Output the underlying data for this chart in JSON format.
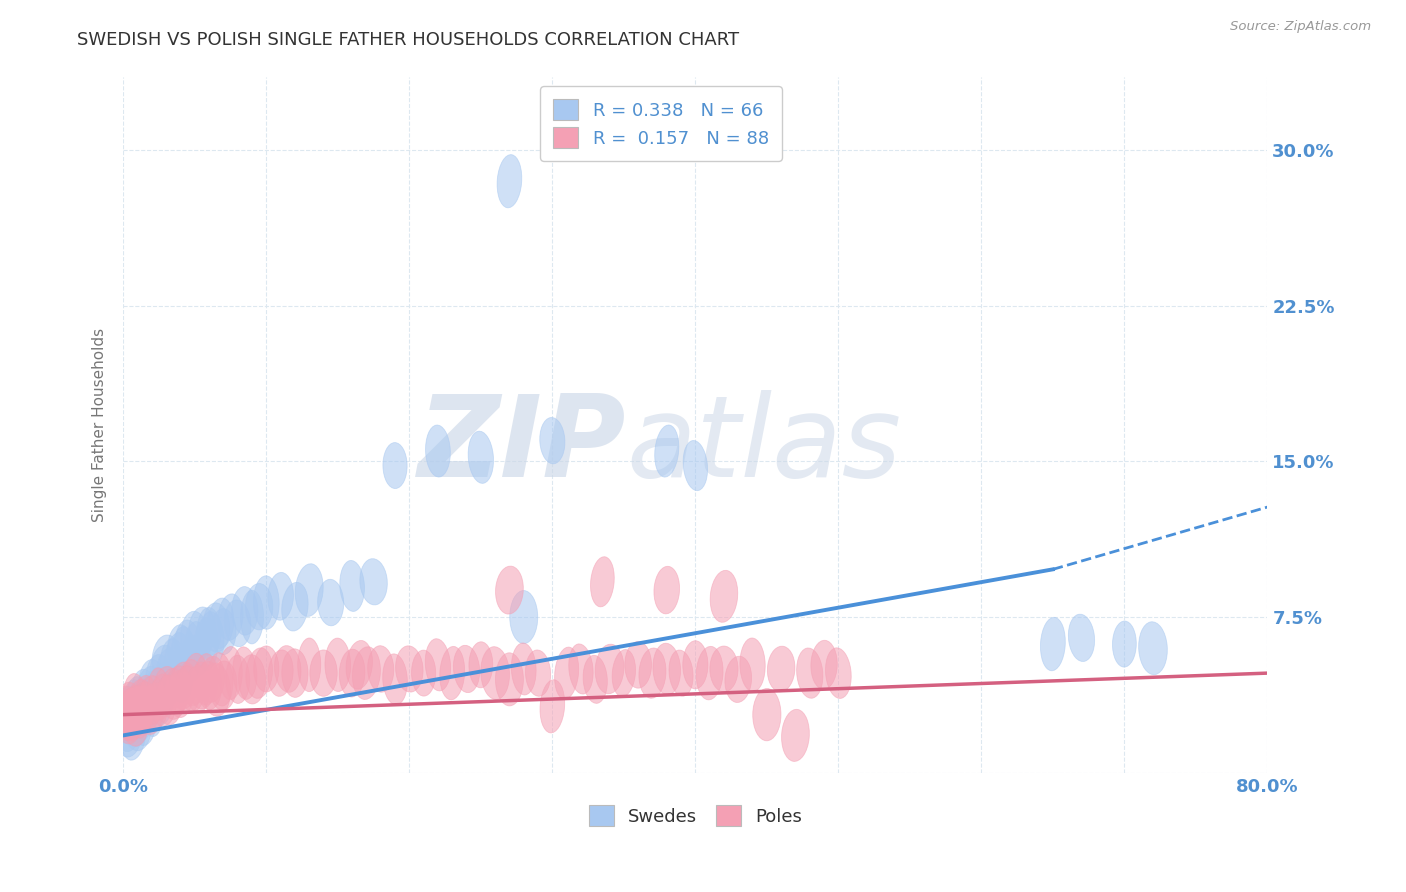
{
  "title": "SWEDISH VS POLISH SINGLE FATHER HOUSEHOLDS CORRELATION CHART",
  "source": "Source: ZipAtlas.com",
  "ylabel": "Single Father Households",
  "xlim": [
    0.0,
    0.8
  ],
  "ylim": [
    0.0,
    0.335
  ],
  "xticks": [
    0.0,
    0.1,
    0.2,
    0.3,
    0.4,
    0.5,
    0.6,
    0.7,
    0.8
  ],
  "yticks": [
    0.0,
    0.075,
    0.15,
    0.225,
    0.3
  ],
  "ytick_labels": [
    "",
    "7.5%",
    "15.0%",
    "22.5%",
    "30.0%"
  ],
  "sweden_R": 0.338,
  "sweden_N": 66,
  "poland_R": 0.157,
  "poland_N": 88,
  "sweden_color": "#a8c8f0",
  "poland_color": "#f4a0b4",
  "line_sweden_color": "#4a90d9",
  "line_poland_color": "#d46080",
  "watermark": "ZIPAtlas",
  "watermark_color": "#ccd8e8",
  "sweden_line_x0": 0.0,
  "sweden_line_y0": 0.018,
  "sweden_line_x1": 0.65,
  "sweden_line_y1": 0.098,
  "sweden_line_dash_x1": 0.8,
  "sweden_line_dash_y1": 0.128,
  "poland_line_x0": 0.0,
  "poland_line_y0": 0.028,
  "poland_line_x1": 0.8,
  "poland_line_y1": 0.048,
  "sweden_scatter": [
    [
      0.002,
      0.022
    ],
    [
      0.003,
      0.025
    ],
    [
      0.004,
      0.02
    ],
    [
      0.005,
      0.03
    ],
    [
      0.006,
      0.028
    ],
    [
      0.007,
      0.018
    ],
    [
      0.008,
      0.025
    ],
    [
      0.009,
      0.032
    ],
    [
      0.01,
      0.022
    ],
    [
      0.01,
      0.035
    ],
    [
      0.012,
      0.028
    ],
    [
      0.013,
      0.03
    ],
    [
      0.015,
      0.025
    ],
    [
      0.015,
      0.038
    ],
    [
      0.016,
      0.032
    ],
    [
      0.018,
      0.035
    ],
    [
      0.019,
      0.04
    ],
    [
      0.02,
      0.03
    ],
    [
      0.02,
      0.042
    ],
    [
      0.022,
      0.038
    ],
    [
      0.025,
      0.045
    ],
    [
      0.025,
      0.035
    ],
    [
      0.028,
      0.05
    ],
    [
      0.03,
      0.042
    ],
    [
      0.03,
      0.055
    ],
    [
      0.032,
      0.048
    ],
    [
      0.035,
      0.052
    ],
    [
      0.038,
      0.055
    ],
    [
      0.04,
      0.045
    ],
    [
      0.04,
      0.06
    ],
    [
      0.042,
      0.058
    ],
    [
      0.045,
      0.062
    ],
    [
      0.048,
      0.055
    ],
    [
      0.05,
      0.065
    ],
    [
      0.052,
      0.06
    ],
    [
      0.055,
      0.068
    ],
    [
      0.058,
      0.062
    ],
    [
      0.06,
      0.068
    ],
    [
      0.062,
      0.065
    ],
    [
      0.065,
      0.07
    ],
    [
      0.068,
      0.072
    ],
    [
      0.07,
      0.068
    ],
    [
      0.075,
      0.075
    ],
    [
      0.08,
      0.072
    ],
    [
      0.085,
      0.078
    ],
    [
      0.09,
      0.075
    ],
    [
      0.095,
      0.08
    ],
    [
      0.1,
      0.082
    ],
    [
      0.11,
      0.085
    ],
    [
      0.12,
      0.08
    ],
    [
      0.13,
      0.088
    ],
    [
      0.145,
      0.082
    ],
    [
      0.16,
      0.09
    ],
    [
      0.175,
      0.092
    ],
    [
      0.19,
      0.148
    ],
    [
      0.25,
      0.152
    ],
    [
      0.65,
      0.062
    ],
    [
      0.67,
      0.065
    ],
    [
      0.7,
      0.062
    ],
    [
      0.72,
      0.06
    ],
    [
      0.28,
      0.075
    ],
    [
      0.22,
      0.155
    ],
    [
      0.3,
      0.16
    ],
    [
      0.27,
      0.285
    ],
    [
      0.38,
      0.155
    ],
    [
      0.4,
      0.148
    ]
  ],
  "poland_scatter": [
    [
      0.002,
      0.03
    ],
    [
      0.003,
      0.025
    ],
    [
      0.004,
      0.028
    ],
    [
      0.005,
      0.032
    ],
    [
      0.006,
      0.028
    ],
    [
      0.007,
      0.03
    ],
    [
      0.008,
      0.025
    ],
    [
      0.009,
      0.035
    ],
    [
      0.01,
      0.03
    ],
    [
      0.011,
      0.028
    ],
    [
      0.012,
      0.032
    ],
    [
      0.013,
      0.03
    ],
    [
      0.015,
      0.035
    ],
    [
      0.016,
      0.032
    ],
    [
      0.018,
      0.03
    ],
    [
      0.02,
      0.035
    ],
    [
      0.022,
      0.032
    ],
    [
      0.025,
      0.038
    ],
    [
      0.028,
      0.035
    ],
    [
      0.03,
      0.04
    ],
    [
      0.032,
      0.035
    ],
    [
      0.035,
      0.038
    ],
    [
      0.038,
      0.04
    ],
    [
      0.04,
      0.038
    ],
    [
      0.042,
      0.042
    ],
    [
      0.045,
      0.04
    ],
    [
      0.048,
      0.042
    ],
    [
      0.05,
      0.045
    ],
    [
      0.052,
      0.04
    ],
    [
      0.055,
      0.042
    ],
    [
      0.058,
      0.045
    ],
    [
      0.06,
      0.042
    ],
    [
      0.062,
      0.045
    ],
    [
      0.065,
      0.04
    ],
    [
      0.068,
      0.045
    ],
    [
      0.07,
      0.042
    ],
    [
      0.075,
      0.048
    ],
    [
      0.08,
      0.045
    ],
    [
      0.085,
      0.048
    ],
    [
      0.09,
      0.045
    ],
    [
      0.095,
      0.048
    ],
    [
      0.1,
      0.05
    ],
    [
      0.11,
      0.048
    ],
    [
      0.115,
      0.05
    ],
    [
      0.12,
      0.048
    ],
    [
      0.13,
      0.052
    ],
    [
      0.14,
      0.048
    ],
    [
      0.15,
      0.052
    ],
    [
      0.16,
      0.048
    ],
    [
      0.165,
      0.052
    ],
    [
      0.17,
      0.048
    ],
    [
      0.18,
      0.05
    ],
    [
      0.19,
      0.045
    ],
    [
      0.2,
      0.05
    ],
    [
      0.21,
      0.048
    ],
    [
      0.22,
      0.052
    ],
    [
      0.23,
      0.048
    ],
    [
      0.24,
      0.05
    ],
    [
      0.25,
      0.052
    ],
    [
      0.26,
      0.048
    ],
    [
      0.27,
      0.045
    ],
    [
      0.28,
      0.05
    ],
    [
      0.29,
      0.048
    ],
    [
      0.3,
      0.032
    ],
    [
      0.31,
      0.048
    ],
    [
      0.32,
      0.05
    ],
    [
      0.33,
      0.045
    ],
    [
      0.34,
      0.05
    ],
    [
      0.35,
      0.048
    ],
    [
      0.36,
      0.052
    ],
    [
      0.37,
      0.048
    ],
    [
      0.38,
      0.05
    ],
    [
      0.39,
      0.048
    ],
    [
      0.4,
      0.052
    ],
    [
      0.41,
      0.048
    ],
    [
      0.42,
      0.05
    ],
    [
      0.43,
      0.045
    ],
    [
      0.44,
      0.052
    ],
    [
      0.45,
      0.028
    ],
    [
      0.46,
      0.05
    ],
    [
      0.47,
      0.018
    ],
    [
      0.48,
      0.048
    ],
    [
      0.49,
      0.052
    ],
    [
      0.5,
      0.048
    ],
    [
      0.38,
      0.088
    ],
    [
      0.42,
      0.085
    ],
    [
      0.335,
      0.092
    ],
    [
      0.27,
      0.088
    ]
  ],
  "background_color": "#ffffff",
  "grid_color": "#dde8f0",
  "tick_color": "#5090d0",
  "title_color": "#333333",
  "title_fontsize": 13,
  "axis_label_color": "#777777"
}
